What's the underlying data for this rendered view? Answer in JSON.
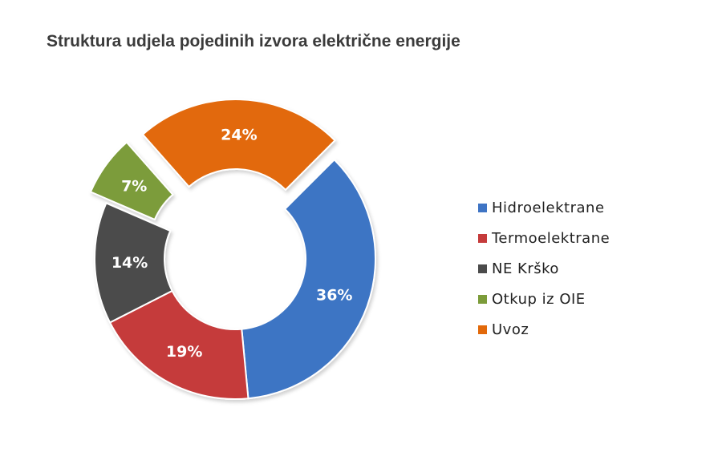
{
  "title": "Struktura udjela pojedinih izvora električne energije",
  "chart_data": {
    "type": "pie",
    "variant": "donut",
    "title": "Struktura udjela pojedinih izvora električne energije",
    "legend_position": "right",
    "slices": [
      {
        "label": "Hidroelektrane",
        "value": 36,
        "value_label": "36%",
        "color": "#3e74c4",
        "exploded": false
      },
      {
        "label": "Termoelektrane",
        "value": 19,
        "value_label": "19%",
        "color": "#c53b3b",
        "exploded": false
      },
      {
        "label": "NE Krško",
        "value": 14,
        "value_label": "14%",
        "color": "#4b4b4b",
        "exploded": false
      },
      {
        "label": "Otkup iz OIE",
        "value": 7,
        "value_label": "7%",
        "color": "#7c9c3a",
        "exploded": true
      },
      {
        "label": "Uvoz",
        "value": 24,
        "value_label": "24%",
        "color": "#e2690a",
        "exploded": true
      }
    ]
  }
}
